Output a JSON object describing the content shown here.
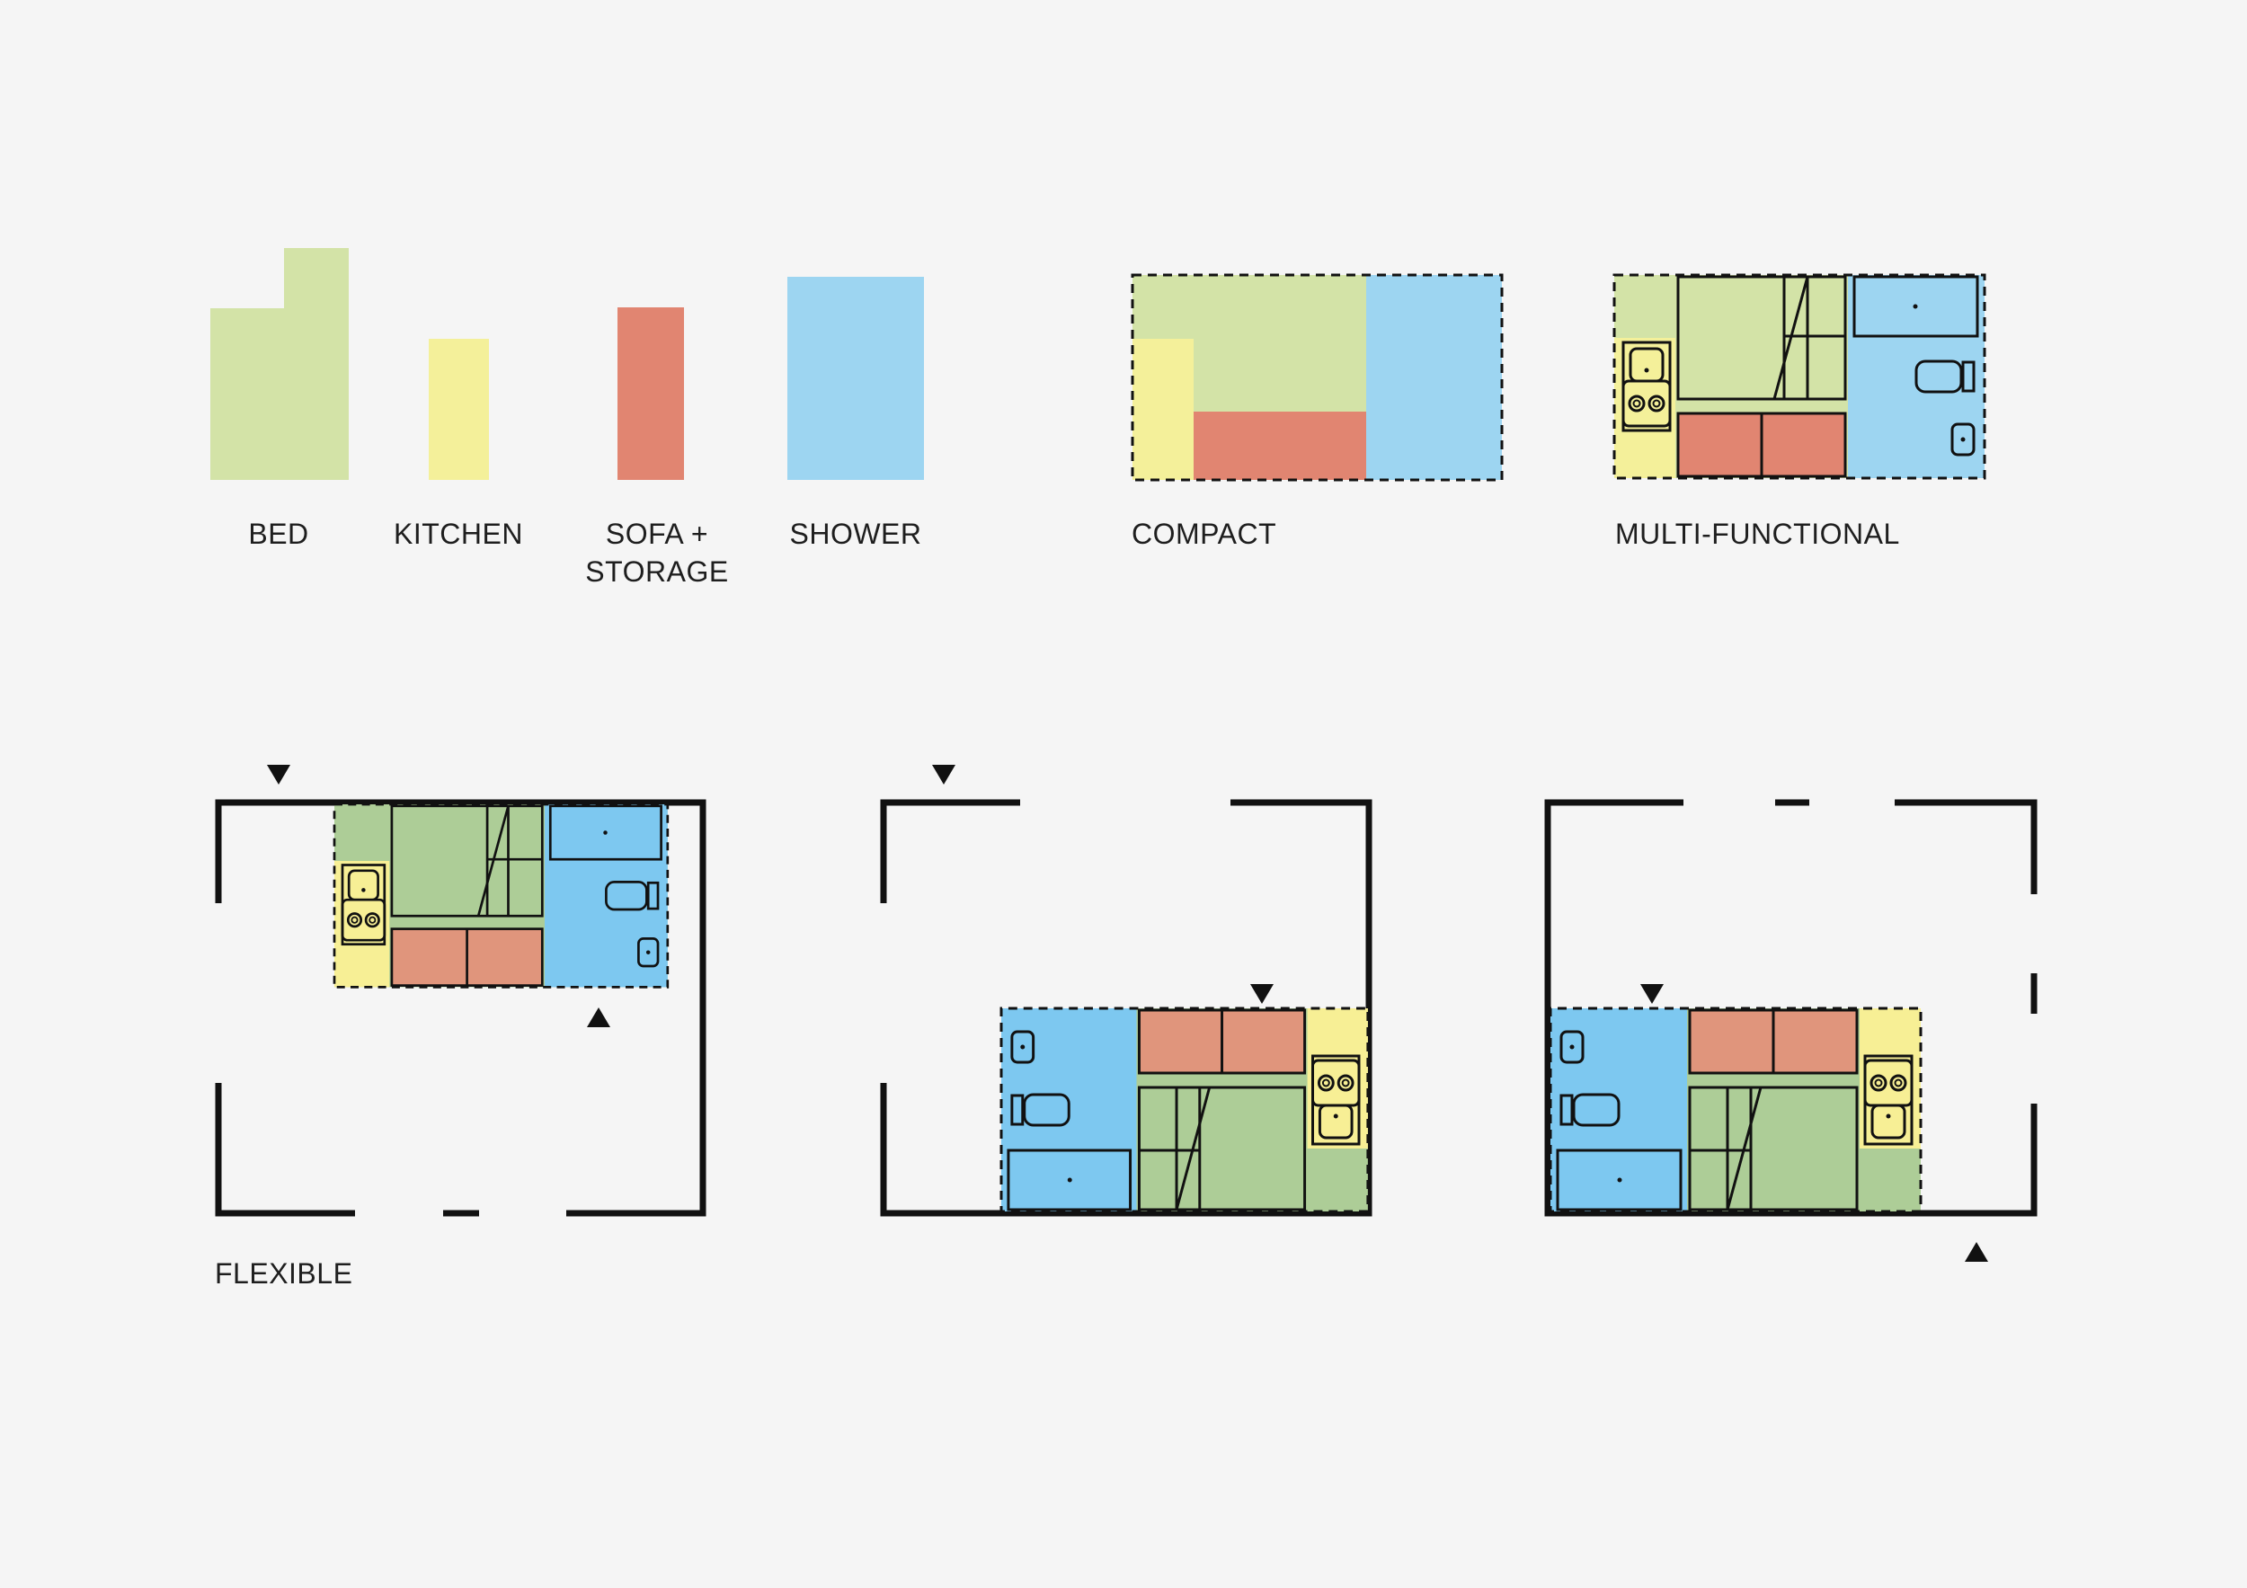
{
  "colors": {
    "background": "#f5f5f5",
    "bed_light": "#d3e3a7",
    "bed_dark": "#adcd97",
    "kitchen": "#f4f09a",
    "kitchen_plan": "#f7ef95",
    "sofa_light": "#e18571",
    "sofa_dark": "#e0957c",
    "shower_light": "#9dd5f1",
    "shower_dark": "#7dc8f0",
    "line": "#111111"
  },
  "legend": {
    "bed": "BED",
    "kitchen": "KITCHEN",
    "sofa_line1": "SOFA +",
    "sofa_line2": "STORAGE",
    "shower": "SHOWER"
  },
  "concepts": {
    "compact": "COMPACT",
    "multi_functional": "MULTI-FUNCTIONAL",
    "flexible": "FLEXIBLE"
  },
  "icons": [
    "entry-arrow-icon",
    "stove-icon",
    "sink-icon",
    "toilet-icon",
    "washbasin-icon"
  ]
}
